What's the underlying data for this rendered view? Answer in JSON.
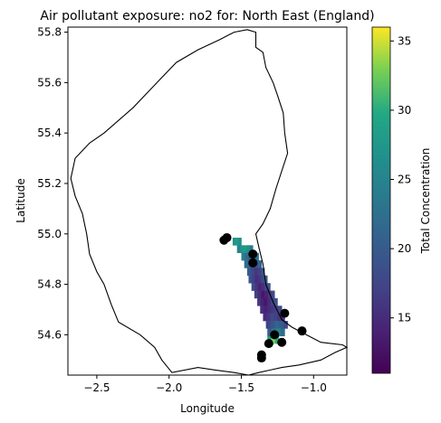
{
  "chart_data": {
    "type": "heatmap",
    "title": "Air pollutant exposure: no2 for: North East (England)",
    "xlabel": "Longitude",
    "ylabel": "Latitude",
    "xlim": [
      -2.7,
      -0.77
    ],
    "ylim": [
      54.44,
      55.82
    ],
    "xticks": [
      -2.5,
      -2.0,
      -1.5,
      -1.0
    ],
    "xtick_labels": [
      "−2.5",
      "−2.0",
      "−1.5",
      "−1.0"
    ],
    "yticks": [
      54.6,
      54.8,
      55.0,
      55.2,
      55.4,
      55.6,
      55.8
    ],
    "ytick_labels": [
      "54.6",
      "54.8",
      "55.0",
      "55.2",
      "55.4",
      "55.6",
      "55.8"
    ],
    "colorbar": {
      "label": "Total Concentration",
      "colormap": "viridis",
      "range": [
        11,
        36
      ],
      "ticks": [
        15,
        20,
        25,
        30,
        35
      ],
      "tick_labels": [
        "15",
        "20",
        "25",
        "30",
        "35"
      ]
    },
    "grid": false,
    "heatmap_band": {
      "description_cells": "concentration cells along the coastal strip from Tyneside to Teesside",
      "rows": [
        {
          "lat": 54.97,
          "lon_start": -1.56,
          "lon_end": -1.5,
          "values": [
            27,
            28,
            26
          ]
        },
        {
          "lat": 54.94,
          "lon_start": -1.53,
          "lon_end": -1.42,
          "values": [
            25,
            27,
            28,
            26,
            24
          ]
        },
        {
          "lat": 54.91,
          "lon_start": -1.5,
          "lon_end": -1.38,
          "values": [
            24,
            22,
            20,
            22,
            23
          ]
        },
        {
          "lat": 54.88,
          "lon_start": -1.48,
          "lon_end": -1.36,
          "values": [
            22,
            21,
            18,
            19,
            21
          ]
        },
        {
          "lat": 54.85,
          "lon_start": -1.46,
          "lon_end": -1.34,
          "values": [
            20,
            18,
            16,
            17,
            19
          ]
        },
        {
          "lat": 54.82,
          "lon_start": -1.45,
          "lon_end": -1.32,
          "values": [
            19,
            17,
            15,
            16,
            18,
            20
          ]
        },
        {
          "lat": 54.79,
          "lon_start": -1.43,
          "lon_end": -1.3,
          "values": [
            18,
            16,
            14,
            15,
            17,
            19
          ]
        },
        {
          "lat": 54.76,
          "lon_start": -1.41,
          "lon_end": -1.27,
          "values": [
            17,
            15,
            13,
            14,
            16,
            18
          ]
        },
        {
          "lat": 54.73,
          "lon_start": -1.39,
          "lon_end": -1.25,
          "values": [
            16,
            14,
            13,
            15,
            17,
            19
          ]
        },
        {
          "lat": 54.7,
          "lon_start": -1.37,
          "lon_end": -1.22,
          "values": [
            15,
            14,
            15,
            16,
            17,
            18
          ]
        },
        {
          "lat": 54.67,
          "lon_start": -1.35,
          "lon_end": -1.2,
          "values": [
            15,
            16,
            18,
            17,
            16,
            15
          ]
        },
        {
          "lat": 54.64,
          "lon_start": -1.33,
          "lon_end": -1.18,
          "values": [
            17,
            19,
            21,
            20,
            18
          ]
        },
        {
          "lat": 54.61,
          "lon_start": -1.32,
          "lon_end": -1.2,
          "values": [
            20,
            23,
            25,
            22
          ]
        },
        {
          "lat": 54.58,
          "lon_start": -1.32,
          "lon_end": -1.24,
          "values": [
            28,
            33,
            30
          ]
        }
      ]
    },
    "points": [
      {
        "lon": -1.62,
        "lat": 54.975
      },
      {
        "lon": -1.6,
        "lat": 54.985
      },
      {
        "lon": -1.42,
        "lat": 54.92
      },
      {
        "lon": -1.42,
        "lat": 54.885
      },
      {
        "lon": -1.2,
        "lat": 54.685
      },
      {
        "lon": -1.08,
        "lat": 54.615
      },
      {
        "lon": -1.27,
        "lat": 54.6
      },
      {
        "lon": -1.31,
        "lat": 54.565
      },
      {
        "lon": -1.22,
        "lat": 54.57
      },
      {
        "lon": -1.36,
        "lat": 54.52
      },
      {
        "lon": -1.36,
        "lat": 54.508
      }
    ],
    "boundary": [
      [
        -1.46,
        55.81
      ],
      [
        -1.4,
        55.8
      ],
      [
        -1.4,
        55.74
      ],
      [
        -1.35,
        55.72
      ],
      [
        -1.33,
        55.66
      ],
      [
        -1.28,
        55.6
      ],
      [
        -1.25,
        55.55
      ],
      [
        -1.21,
        55.48
      ],
      [
        -1.2,
        55.4
      ],
      [
        -1.18,
        55.32
      ],
      [
        -1.22,
        55.25
      ],
      [
        -1.26,
        55.18
      ],
      [
        -1.3,
        55.1
      ],
      [
        -1.35,
        55.04
      ],
      [
        -1.4,
        55.0
      ],
      [
        -1.38,
        54.95
      ],
      [
        -1.35,
        54.88
      ],
      [
        -1.33,
        54.8
      ],
      [
        -1.28,
        54.73
      ],
      [
        -1.22,
        54.66
      ],
      [
        -1.15,
        54.63
      ],
      [
        -1.05,
        54.6
      ],
      [
        -0.95,
        54.57
      ],
      [
        -0.8,
        54.56
      ],
      [
        -0.77,
        54.55
      ],
      [
        -0.85,
        54.53
      ],
      [
        -0.95,
        54.5
      ],
      [
        -1.1,
        54.48
      ],
      [
        -1.22,
        54.47
      ],
      [
        -1.3,
        54.46
      ],
      [
        -1.38,
        54.45
      ],
      [
        -1.45,
        54.44
      ],
      [
        -1.55,
        54.45
      ],
      [
        -1.68,
        54.46
      ],
      [
        -1.8,
        54.47
      ],
      [
        -1.98,
        54.45
      ],
      [
        -2.05,
        54.5
      ],
      [
        -2.1,
        54.55
      ],
      [
        -2.2,
        54.6
      ],
      [
        -2.35,
        54.65
      ],
      [
        -2.4,
        54.72
      ],
      [
        -2.45,
        54.8
      ],
      [
        -2.5,
        54.85
      ],
      [
        -2.55,
        54.92
      ],
      [
        -2.57,
        55.0
      ],
      [
        -2.6,
        55.08
      ],
      [
        -2.65,
        55.15
      ],
      [
        -2.68,
        55.22
      ],
      [
        -2.65,
        55.3
      ],
      [
        -2.55,
        55.36
      ],
      [
        -2.45,
        55.4
      ],
      [
        -2.35,
        55.45
      ],
      [
        -2.25,
        55.5
      ],
      [
        -2.15,
        55.56
      ],
      [
        -2.05,
        55.62
      ],
      [
        -1.95,
        55.68
      ],
      [
        -1.8,
        55.73
      ],
      [
        -1.65,
        55.77
      ],
      [
        -1.55,
        55.8
      ],
      [
        -1.46,
        55.81
      ]
    ]
  }
}
